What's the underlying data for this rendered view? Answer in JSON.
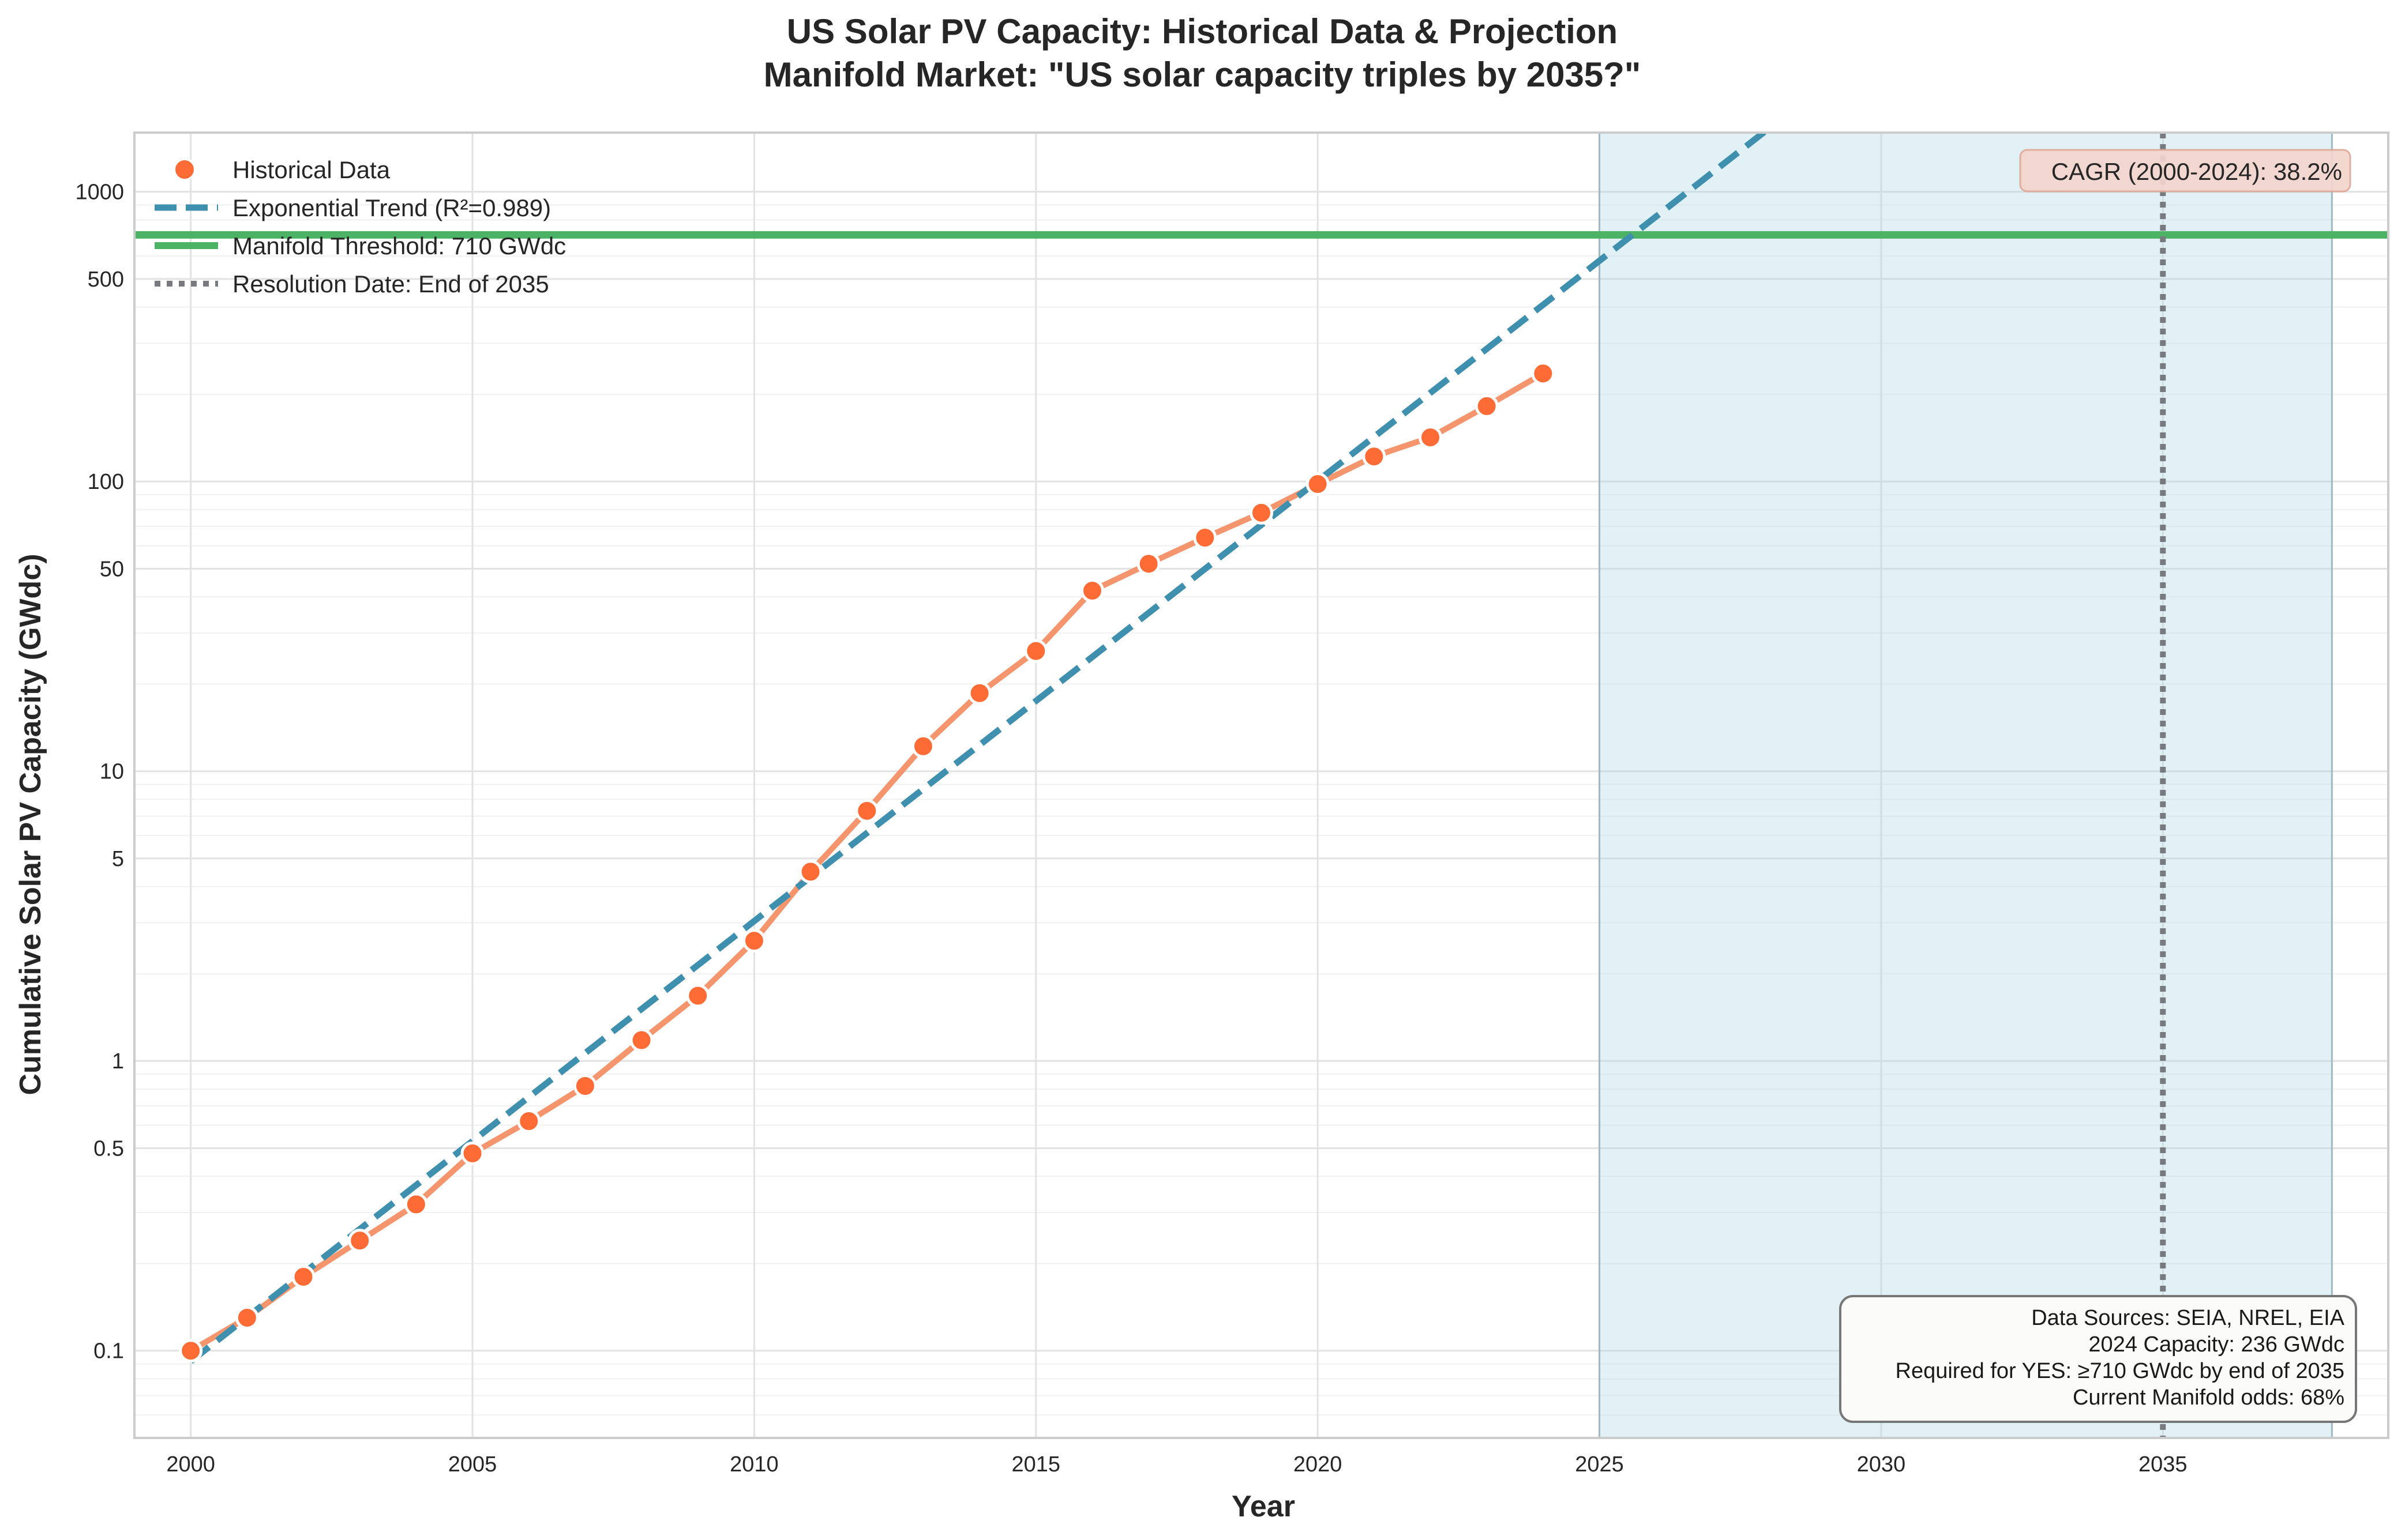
{
  "chart_data": {
    "type": "line",
    "title_line1": "US Solar PV Capacity: Historical Data & Projection",
    "title_line2": "Manifold Market: \"US solar capacity triples by 2035?\"",
    "xlabel": "Year",
    "ylabel": "Cumulative Solar PV Capacity (GWdc)",
    "xlim": [
      1999,
      2039
    ],
    "ylim": [
      0.05,
      1600
    ],
    "yscale": "log",
    "grid": true,
    "x_ticks": [
      2000,
      2005,
      2010,
      2015,
      2020,
      2025,
      2030,
      2035
    ],
    "y_ticks": [
      {
        "value": 0.1,
        "label": "0.1"
      },
      {
        "value": 0.5,
        "label": "0.5"
      },
      {
        "value": 1,
        "label": "1"
      },
      {
        "value": 5,
        "label": "5"
      },
      {
        "value": 10,
        "label": "10"
      },
      {
        "value": 50,
        "label": "50"
      },
      {
        "value": 100,
        "label": "100"
      },
      {
        "value": 500,
        "label": "500"
      },
      {
        "value": 1000,
        "label": "1000"
      }
    ],
    "historical": {
      "name": "Historical Data",
      "color": "#ff6b35",
      "line_color": "#f4956d",
      "x": [
        2000,
        2001,
        2002,
        2003,
        2004,
        2005,
        2006,
        2007,
        2008,
        2009,
        2010,
        2011,
        2012,
        2013,
        2014,
        2015,
        2016,
        2017,
        2018,
        2019,
        2020,
        2021,
        2022,
        2023,
        2024
      ],
      "y": [
        0.1,
        0.13,
        0.18,
        0.24,
        0.32,
        0.48,
        0.62,
        0.82,
        1.18,
        1.68,
        2.6,
        4.5,
        7.3,
        12.2,
        18.6,
        26,
        42,
        52,
        64,
        78,
        98,
        122,
        142,
        182,
        236
      ]
    },
    "trend": {
      "name": "Exponential Trend (R²=0.989)",
      "color": "#3f8fae",
      "x": [
        2000,
        2028
      ],
      "y": [
        0.092,
        1650
      ]
    },
    "threshold": {
      "name": "Manifold Threshold: 710 GWdc",
      "color": "#4cb364",
      "value": 710
    },
    "resolution": {
      "name": "Resolution Date: End of 2035",
      "color": "#777b80",
      "x": 2035
    },
    "projection_region": {
      "x_start": 2025,
      "x_end": 2038,
      "color": "#add8e6"
    },
    "annotations": {
      "cagr": "CAGR (2000-2024): 38.2%",
      "info_lines": [
        "Data Sources: SEIA, NREL, EIA",
        "2024 Capacity: 236 GWdc",
        "Required for YES: ≥710 GWdc by end of 2035",
        "Current Manifold odds: 68%"
      ]
    }
  }
}
